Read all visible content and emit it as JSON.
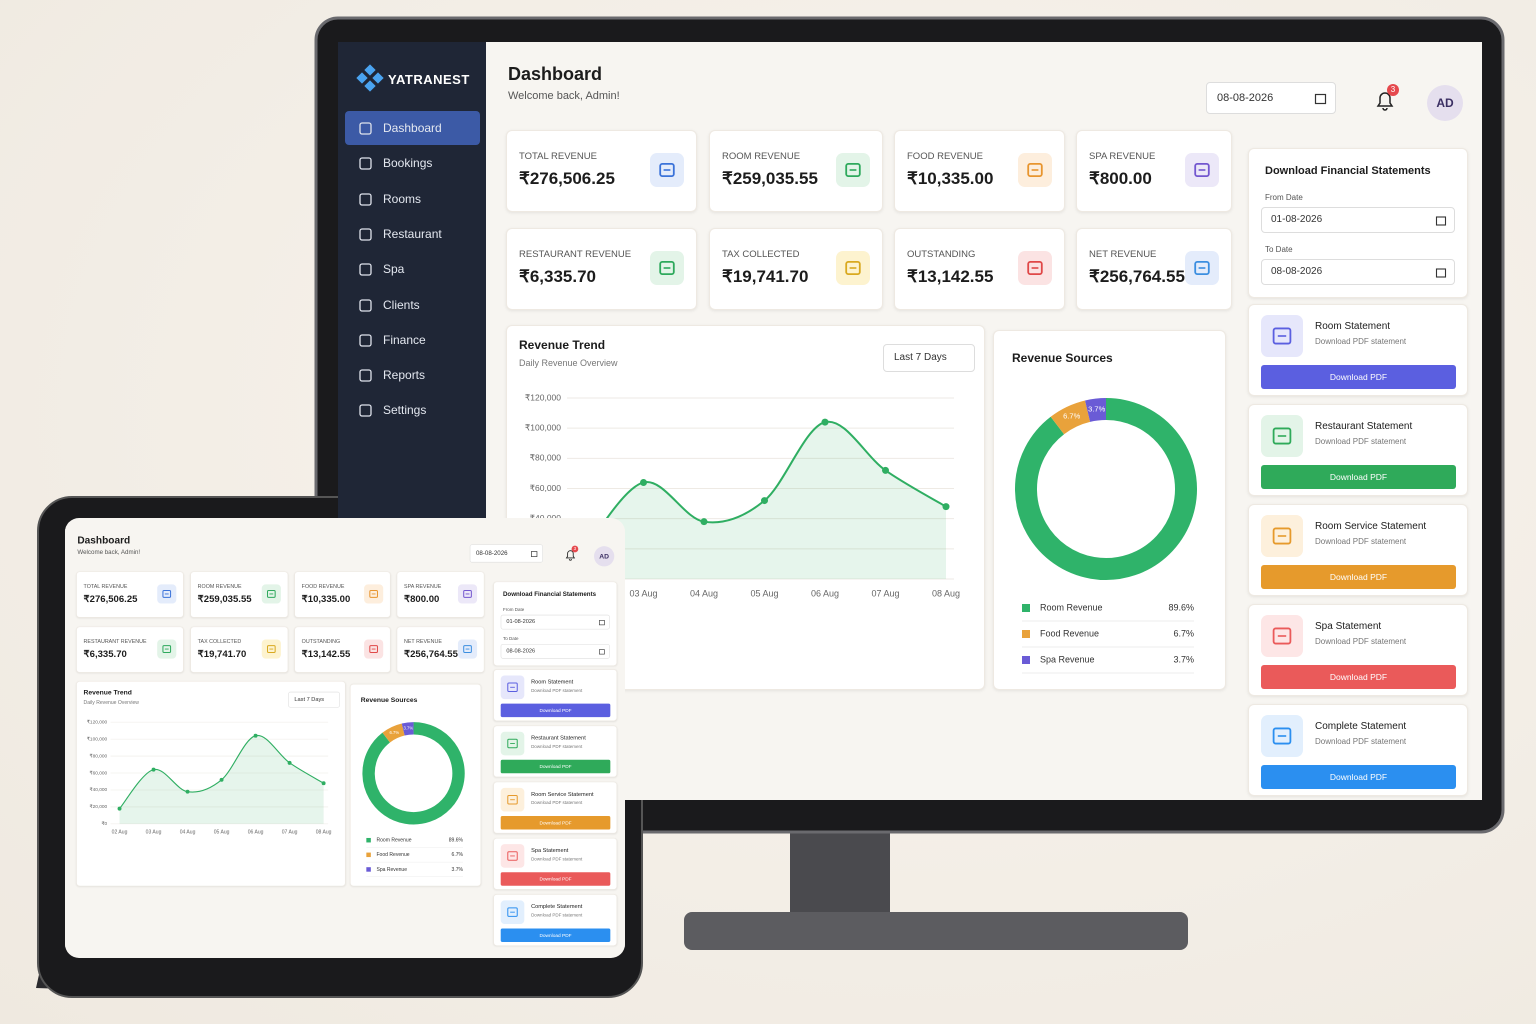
{
  "brand": "YATRANEST",
  "nav": [
    "Dashboard",
    "Bookings",
    "Rooms",
    "Restaurant",
    "Spa",
    "Clients",
    "Finance",
    "Reports",
    "Settings"
  ],
  "header": {
    "title": "Dashboard",
    "subtitle": "Welcome back, Admin!",
    "date": "08-08-2026",
    "notifications": 3,
    "avatar": "AD"
  },
  "kpis": [
    {
      "label": "TOTAL REVENUE",
      "value": "₹276,506.25"
    },
    {
      "label": "ROOM REVENUE",
      "value": "₹259,035.55"
    },
    {
      "label": "FOOD REVENUE",
      "value": "₹10,335.00"
    },
    {
      "label": "SPA REVENUE",
      "value": "₹800.00"
    },
    {
      "label": "RESTAURANT REVENUE",
      "value": "₹6,335.70"
    },
    {
      "label": "TAX COLLECTED",
      "value": "₹19,741.70"
    },
    {
      "label": "OUTSTANDING",
      "value": "₹13,142.55"
    },
    {
      "label": "NET REVENUE",
      "value": "₹256,764.55"
    }
  ],
  "chart_data": [
    {
      "type": "line",
      "title": "Revenue Trend",
      "subtitle": "Daily Revenue Overview",
      "selector": "Last 7 Days",
      "categories": [
        "02 Aug",
        "03 Aug",
        "04 Aug",
        "05 Aug",
        "06 Aug",
        "07 Aug",
        "08 Aug"
      ],
      "series": [
        {
          "color": "#2fae62",
          "values": [
            18000,
            64000,
            38000,
            52000,
            104000,
            72000,
            48000
          ]
        }
      ],
      "ylim": [
        0,
        120000
      ],
      "yticks": [
        {
          "value": 0,
          "label": "₹0"
        },
        {
          "value": 20000,
          "label": "₹20,000"
        },
        {
          "value": 40000,
          "label": "₹40,000"
        },
        {
          "value": 60000,
          "label": "₹60,000"
        },
        {
          "value": 80000,
          "label": "₹80,000"
        },
        {
          "value": 100000,
          "label": "₹100,000"
        },
        {
          "value": 120000,
          "label": "₹120,000"
        }
      ],
      "grid": true
    },
    {
      "type": "donut",
      "title": "Revenue Sources",
      "categories": [
        "Room Revenue",
        "Food Revenue",
        "Spa Revenue"
      ],
      "values": [
        89.6,
        6.7,
        3.7
      ],
      "value_labels": [
        "89.6%",
        "6.7%",
        "3.7%"
      ],
      "colors": [
        "#2fb36a",
        "#e9a23b",
        "#6a5bd6"
      ]
    }
  ],
  "statements": {
    "title": "Download Financial Statements",
    "from_label": "From Date",
    "from": "01-08-2026",
    "to_label": "To Date",
    "to": "08-08-2026",
    "items": [
      {
        "title": "Room Statement",
        "subtitle": "Download PDF statement",
        "button": "Download PDF"
      },
      {
        "title": "Restaurant Statement",
        "subtitle": "Download PDF statement",
        "button": "Download PDF"
      },
      {
        "title": "Room Service Statement",
        "subtitle": "Download PDF statement",
        "button": "Download PDF"
      },
      {
        "title": "Spa Statement",
        "subtitle": "Download PDF statement",
        "button": "Download PDF"
      },
      {
        "title": "Complete Statement",
        "subtitle": "Download PDF statement",
        "button": "Download PDF"
      }
    ]
  }
}
